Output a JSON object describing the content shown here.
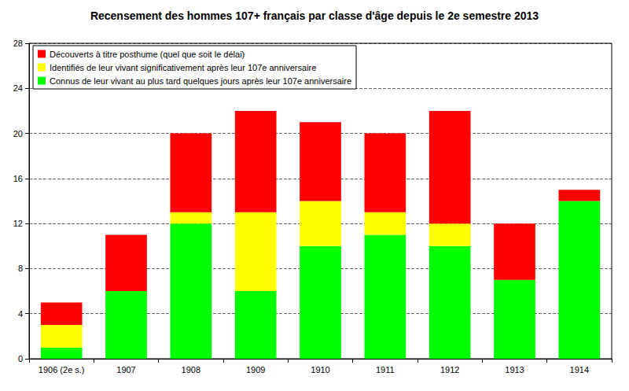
{
  "chart_data": {
    "type": "bar",
    "title": "Recensement des hommes 107+ français par classe d'âge depuis le 2e semestre 2013",
    "categories": [
      "1906 (2e s.)",
      "1907",
      "1908",
      "1909",
      "1910",
      "1911",
      "1912",
      "1913",
      "1914"
    ],
    "series": [
      {
        "name": "Découverts à titre posthume (quel que soit le délai)",
        "color": "#ff0000",
        "values": [
          2,
          5,
          7,
          9,
          7,
          7,
          10,
          5,
          1
        ]
      },
      {
        "name": "Identifiés de leur vivant significativement après leur 107e anniversaire",
        "color": "#ffff00",
        "values": [
          2,
          0,
          1,
          7,
          4,
          2,
          2,
          0,
          0
        ]
      },
      {
        "name": "Connus de leur vivant au plus tard quelques jours après leur 107e anniversaire",
        "color": "#00ff00",
        "values": [
          1,
          6,
          12,
          6,
          10,
          11,
          10,
          7,
          14
        ]
      }
    ],
    "stacked": true,
    "ylim": [
      0,
      28
    ],
    "yticks": [
      0,
      4,
      8,
      12,
      16,
      20,
      24,
      28
    ],
    "grid": true,
    "legend": "top-left"
  }
}
